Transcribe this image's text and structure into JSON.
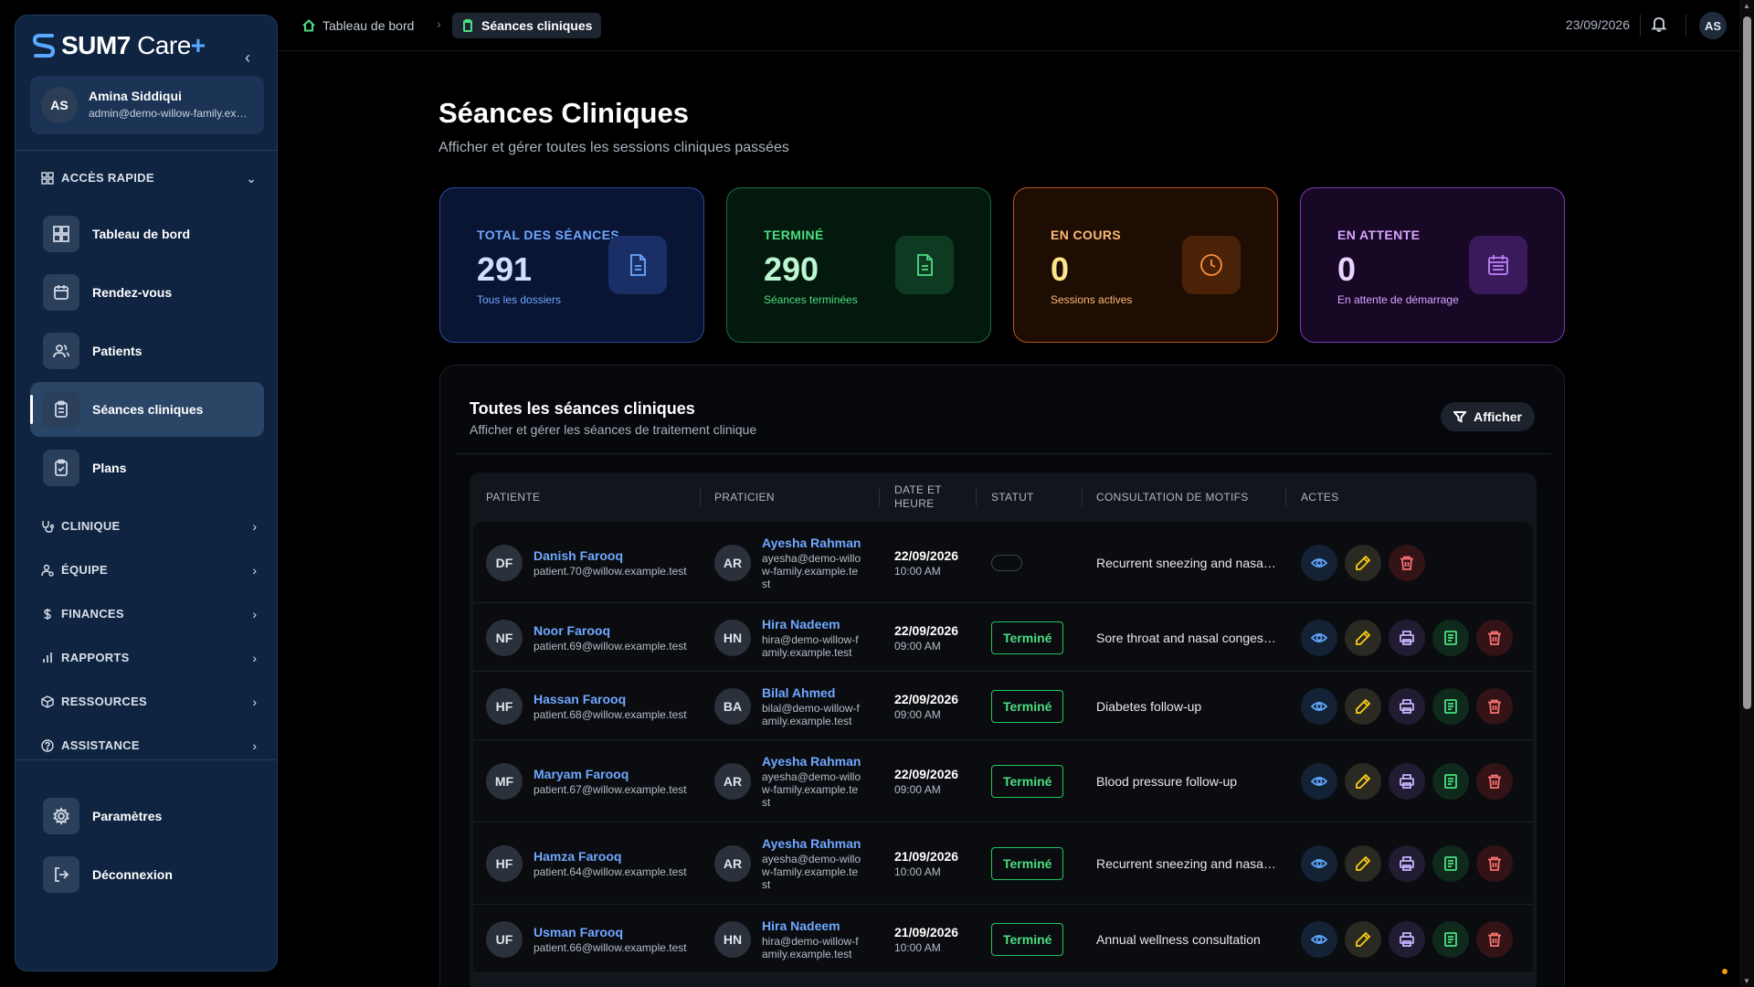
{
  "brand": {
    "name": "SUM7",
    "suffix": " Care",
    "cross": "+"
  },
  "user": {
    "initials": "AS",
    "name": "Amina Siddiqui",
    "email": "admin@demo-willow-family.example.test"
  },
  "sidebar": {
    "quick_access": "ACCÈS RAPIDE",
    "items": [
      {
        "label": "Tableau de bord",
        "icon": "dashboard-icon"
      },
      {
        "label": "Rendez-vous",
        "icon": "calendar-icon"
      },
      {
        "label": "Patients",
        "icon": "users-icon"
      },
      {
        "label": "Séances cliniques",
        "icon": "clipboard-icon"
      },
      {
        "label": "Plans",
        "icon": "clipboard-check-icon"
      }
    ],
    "sections": [
      {
        "label": "CLINIQUE",
        "icon": "stethoscope-icon"
      },
      {
        "label": "ÉQUIPE",
        "icon": "user-cog-icon"
      },
      {
        "label": "FINANCES",
        "icon": "dollar-icon"
      },
      {
        "label": "RAPPORTS",
        "icon": "bar-chart-icon"
      },
      {
        "label": "RESSOURCES",
        "icon": "package-icon"
      },
      {
        "label": "ASSISTANCE",
        "icon": "help-icon"
      }
    ],
    "settings": "Paramètres",
    "logout": "Déconnexion"
  },
  "topbar": {
    "crumb_home": "Tableau de bord",
    "crumb_current": "Séances cliniques",
    "date": "23/09/2026",
    "avatar": "AS"
  },
  "page": {
    "title": "Séances Cliniques",
    "subtitle": "Afficher et gérer toutes les sessions cliniques passées"
  },
  "stats": [
    {
      "label": "TOTAL DES SÉANCES",
      "value": "291",
      "note": "Tous les dossiers",
      "color": "#6ea8ff"
    },
    {
      "label": "TERMINÉ",
      "value": "290",
      "note": "Séances terminées",
      "color": "#4ade80"
    },
    {
      "label": "EN COURS",
      "value": "0",
      "note": "Sessions actives",
      "color": "#fb923c"
    },
    {
      "label": "EN ATTENTE",
      "value": "0",
      "note": "En attente de démarrage",
      "color": "#c084fc"
    }
  ],
  "table": {
    "title": "Toutes les séances cliniques",
    "subtitle": "Afficher et gérer les séances de traitement clinique",
    "filter_label": "Afficher",
    "columns": [
      "PATIENTE",
      "PRATICIEN",
      "DATE ET HEURE",
      "STATUT",
      "CONSULTATION DE MOTIFS",
      "ACTES"
    ],
    "rows": [
      {
        "initials": "DF",
        "patient": "Danish Farooq",
        "patient_email": "patient.70@willow.example.test",
        "pr_initials": "AR",
        "practitioner": "Ayesha Rahman",
        "pr_email": "ayesha@demo-willow-family.example.test",
        "date": "22/09/2026",
        "time": "10:00 AM",
        "status": "",
        "reason": "Recurrent sneezing and nasal congestion"
      },
      {
        "initials": "NF",
        "patient": "Noor Farooq",
        "patient_email": "patient.69@willow.example.test",
        "pr_initials": "HN",
        "practitioner": "Hira Nadeem",
        "pr_email": "hira@demo-willow-family.example.test",
        "date": "22/09/2026",
        "time": "09:00 AM",
        "status": "Terminé",
        "reason": "Sore throat and nasal congestion"
      },
      {
        "initials": "HF",
        "patient": "Hassan Farooq",
        "patient_email": "patient.68@willow.example.test",
        "pr_initials": "BA",
        "practitioner": "Bilal Ahmed",
        "pr_email": "bilal@demo-willow-family.example.test",
        "date": "22/09/2026",
        "time": "09:00 AM",
        "status": "Terminé",
        "reason": "Diabetes follow-up"
      },
      {
        "initials": "MF",
        "patient": "Maryam Farooq",
        "patient_email": "patient.67@willow.example.test",
        "pr_initials": "AR",
        "practitioner": "Ayesha Rahman",
        "pr_email": "ayesha@demo-willow-family.example.test",
        "date": "22/09/2026",
        "time": "09:00 AM",
        "status": "Terminé",
        "reason": "Blood pressure follow-up"
      },
      {
        "initials": "HF",
        "patient": "Hamza Farooq",
        "patient_email": "patient.64@willow.example.test",
        "pr_initials": "AR",
        "practitioner": "Ayesha Rahman",
        "pr_email": "ayesha@demo-willow-family.example.test",
        "date": "21/09/2026",
        "time": "10:00 AM",
        "status": "Terminé",
        "reason": "Recurrent sneezing and nasal congestion"
      },
      {
        "initials": "UF",
        "patient": "Usman Farooq",
        "patient_email": "patient.66@willow.example.test",
        "pr_initials": "HN",
        "practitioner": "Hira Nadeem",
        "pr_email": "hira@demo-willow-family.example.test",
        "date": "21/09/2026",
        "time": "10:00 AM",
        "status": "Terminé",
        "reason": "Annual wellness consultation"
      }
    ]
  }
}
